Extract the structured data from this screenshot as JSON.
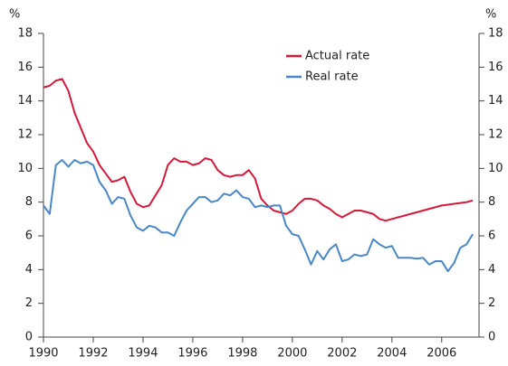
{
  "chart_data": {
    "type": "line",
    "y_label": "%",
    "y2_label": "%",
    "x": [
      1990,
      1990.25,
      1990.5,
      1990.75,
      1991,
      1991.25,
      1991.5,
      1991.75,
      1992,
      1992.25,
      1992.5,
      1992.75,
      1993,
      1993.25,
      1993.5,
      1993.75,
      1994,
      1994.25,
      1994.5,
      1994.75,
      1995,
      1995.25,
      1995.5,
      1995.75,
      1996,
      1996.25,
      1996.5,
      1996.75,
      1997,
      1997.25,
      1997.5,
      1997.75,
      1998,
      1998.25,
      1998.5,
      1998.75,
      1999,
      1999.25,
      1999.5,
      1999.75,
      2000,
      2000.25,
      2000.5,
      2000.75,
      2001,
      2001.25,
      2001.5,
      2001.75,
      2002,
      2002.25,
      2002.5,
      2002.75,
      2003,
      2003.25,
      2003.5,
      2003.75,
      2004,
      2004.25,
      2004.5,
      2004.75,
      2005,
      2005.25,
      2005.5,
      2005.75,
      2006,
      2006.25,
      2006.5,
      2006.75,
      2007,
      2007.25
    ],
    "series": [
      {
        "name": "Actual rate",
        "color": "#d2193a",
        "values": [
          14.8,
          14.9,
          15.2,
          15.3,
          14.6,
          13.3,
          12.4,
          11.5,
          11.0,
          10.2,
          9.7,
          9.2,
          9.3,
          9.5,
          8.6,
          7.9,
          7.7,
          7.8,
          8.4,
          9.0,
          10.2,
          10.6,
          10.4,
          10.4,
          10.2,
          10.3,
          10.6,
          10.5,
          9.9,
          9.6,
          9.5,
          9.6,
          9.6,
          9.9,
          9.4,
          8.2,
          7.8,
          7.5,
          7.4,
          7.3,
          7.5,
          7.9,
          8.2,
          8.2,
          8.1,
          7.8,
          7.6,
          7.3,
          7.1,
          7.3,
          7.5,
          7.5,
          7.4,
          7.3,
          7.0,
          6.9,
          7.0,
          7.1,
          7.2,
          7.3,
          7.4,
          7.5,
          7.6,
          7.7,
          7.8,
          7.85,
          7.9,
          7.95,
          8.0,
          8.1
        ]
      },
      {
        "name": "Real rate",
        "color": "#4a87c6",
        "values": [
          7.8,
          7.3,
          10.2,
          10.5,
          10.1,
          10.5,
          10.3,
          10.4,
          10.2,
          9.2,
          8.7,
          7.9,
          8.3,
          8.2,
          7.2,
          6.5,
          6.3,
          6.6,
          6.5,
          6.2,
          6.2,
          6.0,
          6.8,
          7.5,
          7.9,
          8.3,
          8.3,
          8.0,
          8.1,
          8.5,
          8.4,
          8.7,
          8.3,
          8.2,
          7.7,
          7.8,
          7.7,
          7.8,
          7.8,
          6.6,
          6.1,
          6.0,
          5.2,
          4.3,
          5.1,
          4.6,
          5.2,
          5.5,
          4.5,
          4.6,
          4.9,
          4.8,
          4.9,
          5.8,
          5.5,
          5.3,
          5.4,
          4.7,
          4.7,
          4.7,
          4.65,
          4.7,
          4.3,
          4.5,
          4.5,
          3.9,
          4.4,
          5.3,
          5.5,
          6.1
        ]
      }
    ],
    "xlim": [
      1990,
      2007.5
    ],
    "xticks": [
      1990,
      1992,
      1994,
      1996,
      1998,
      2000,
      2002,
      2004,
      2006
    ],
    "ylim": [
      0,
      18
    ],
    "yticks": [
      0,
      2,
      4,
      6,
      8,
      10,
      12,
      14,
      16,
      18
    ],
    "y2lim": [
      0,
      18
    ],
    "y2ticks": [
      0,
      2,
      4,
      6,
      8,
      10,
      12,
      14,
      16,
      18
    ],
    "legend": "upper center",
    "grid": false
  }
}
